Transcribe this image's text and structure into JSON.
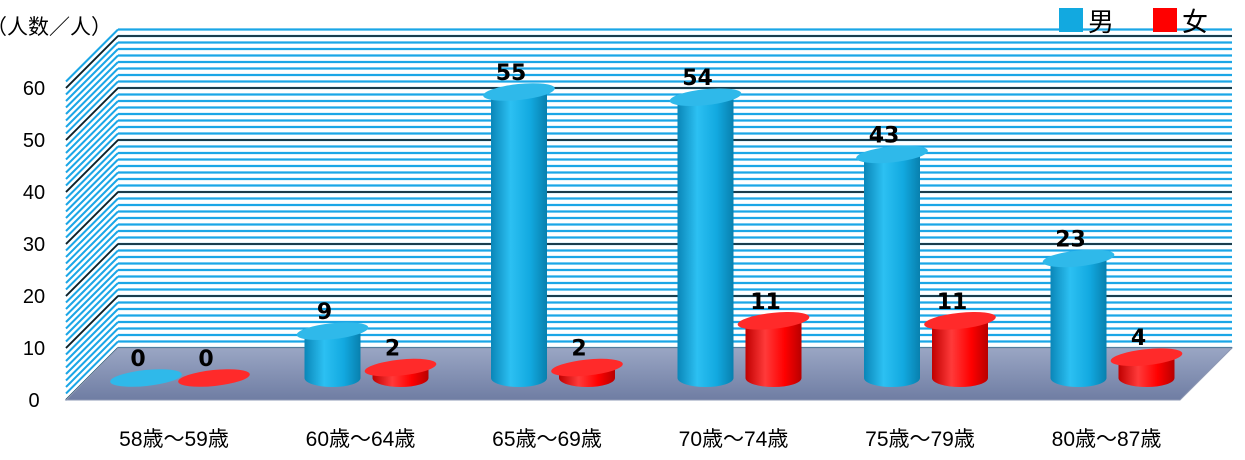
{
  "chart_data": {
    "type": "bar",
    "y_unit_label": "（人数／人）",
    "categories": [
      "58歳～59歳",
      "60歳～64歳",
      "65歳～69歳",
      "70歳～74歳",
      "75歳～79歳",
      "80歳～87歳"
    ],
    "series": [
      {
        "name": "男",
        "color": "#12a9e0",
        "values": [
          0,
          9,
          55,
          54,
          43,
          23
        ]
      },
      {
        "name": "女",
        "color": "#ff0000",
        "values": [
          0,
          2,
          2,
          11,
          11,
          4
        ]
      }
    ],
    "ylim": [
      0,
      60
    ],
    "yticks": [
      0,
      10,
      20,
      30,
      40,
      50,
      60
    ],
    "legend_position": "top-right",
    "grid": true,
    "style": "3d-cylinder"
  }
}
